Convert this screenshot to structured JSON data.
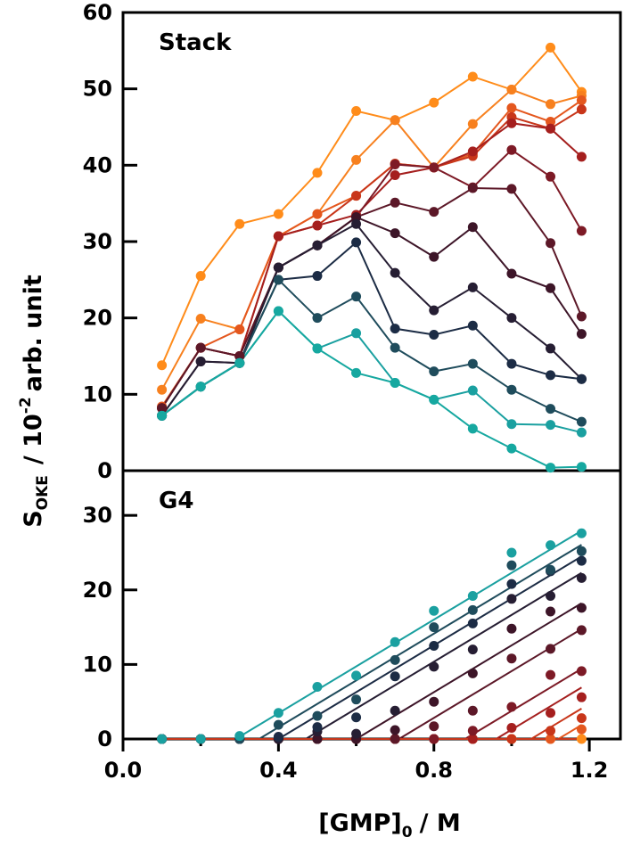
{
  "chart_data": [
    {
      "type": "line",
      "panel_label": "Stack",
      "ylim": [
        0,
        60
      ],
      "yticks": [
        "0",
        "10",
        "20",
        "30",
        "40",
        "50",
        "60"
      ],
      "x": [
        0.1,
        0.2,
        0.3,
        0.4,
        0.5,
        0.6,
        0.7,
        0.8,
        0.9,
        1.0,
        1.1,
        1.18
      ],
      "series": [
        {
          "name": "s1",
          "color": "#ff8c1a",
          "values": [
            13.8,
            25.5,
            32.3,
            33.6,
            39.0,
            47.1,
            45.9,
            48.2,
            51.6,
            49.9,
            55.4,
            49.6
          ]
        },
        {
          "name": "s2",
          "color": "#f7801e",
          "values": [
            10.6,
            19.9,
            18.5,
            30.7,
            33.6,
            40.7,
            45.9,
            39.7,
            45.4,
            49.9,
            48.0,
            49.1
          ]
        },
        {
          "name": "s3",
          "color": "#e4571e",
          "values": [
            8.4,
            16.1,
            18.5,
            30.7,
            33.6,
            36.0,
            40.2,
            39.7,
            41.5,
            47.5,
            45.7,
            48.5
          ]
        },
        {
          "name": "s4",
          "color": "#c8361a",
          "values": [
            8.2,
            16.1,
            15.0,
            30.7,
            32.1,
            36.0,
            40.2,
            39.7,
            41.2,
            46.3,
            44.8,
            47.3
          ]
        },
        {
          "name": "s5",
          "color": "#a51f1e",
          "values": [
            8.2,
            16.1,
            15.0,
            30.7,
            32.1,
            33.5,
            38.7,
            39.7,
            41.8,
            45.5,
            44.8,
            41.1
          ]
        },
        {
          "name": "s6",
          "color": "#7d1a26",
          "values": [
            8.2,
            16.1,
            15.0,
            26.6,
            29.5,
            33.2,
            40.1,
            39.7,
            37.1,
            42.0,
            38.5,
            31.4
          ]
        },
        {
          "name": "s7",
          "color": "#5c1828",
          "values": [
            8.2,
            16.1,
            15.0,
            26.6,
            29.5,
            33.2,
            35.1,
            33.9,
            37.0,
            36.9,
            29.8,
            20.2
          ]
        },
        {
          "name": "s8",
          "color": "#3d1528",
          "values": [
            7.2,
            14.3,
            14.1,
            26.6,
            29.5,
            33.2,
            31.1,
            28.0,
            31.9,
            25.8,
            23.9,
            17.9
          ]
        },
        {
          "name": "s9",
          "color": "#261e33",
          "values": [
            7.2,
            14.3,
            14.1,
            26.6,
            29.5,
            32.3,
            25.9,
            21.0,
            24.0,
            20.0,
            16.0,
            12.0
          ]
        },
        {
          "name": "s10",
          "color": "#1c2c45",
          "values": [
            7.2,
            11.0,
            14.1,
            25.0,
            25.5,
            29.9,
            18.6,
            17.8,
            19.0,
            14.0,
            12.5,
            12.0
          ]
        },
        {
          "name": "s11",
          "color": "#1f4c5c",
          "values": [
            7.2,
            11.0,
            14.1,
            25.0,
            20.0,
            22.8,
            16.1,
            13.0,
            14.0,
            10.6,
            8.1,
            6.4
          ]
        },
        {
          "name": "s12",
          "color": "#1aa0a0",
          "values": [
            7.2,
            11.0,
            14.1,
            20.9,
            16.0,
            18.0,
            11.5,
            9.3,
            10.5,
            6.1,
            6.0,
            5.0
          ]
        },
        {
          "name": "s13",
          "color": "#16a8a0",
          "values": [
            7.2,
            11.0,
            14.1,
            20.9,
            16.0,
            12.8,
            11.5,
            9.3,
            5.5,
            2.9,
            0.4,
            0.5
          ]
        }
      ]
    },
    {
      "type": "scatter",
      "panel_label": "G4",
      "ylim": [
        0,
        36
      ],
      "yticks": [
        "0",
        "10",
        "20",
        "30"
      ],
      "xlabel_x": "[GMP]",
      "xlabel_sub": "0",
      "xlabel_unit": "/ M",
      "xlim": [
        0,
        1.28
      ],
      "xticks": [
        "0.0",
        "0.4",
        "0.8",
        "1.2"
      ],
      "x": [
        0.1,
        0.2,
        0.3,
        0.4,
        0.5,
        0.6,
        0.7,
        0.8,
        0.9,
        1.0,
        1.1,
        1.18
      ],
      "series": [
        {
          "name": "g1",
          "color": "#1aa0a0",
          "x0": 0.29,
          "slope": 31.4,
          "values": [
            0,
            0,
            0.4,
            3.5,
            7.0,
            8.5,
            13.0,
            17.2,
            19.2,
            25.0,
            26.0,
            27.6
          ]
        },
        {
          "name": "g2",
          "color": "#1f4c5c",
          "x0": 0.35,
          "slope": 31.4,
          "values": [
            0,
            0,
            0,
            1.9,
            3.1,
            5.3,
            10.6,
            15.0,
            17.3,
            23.3,
            22.7,
            25.2
          ]
        },
        {
          "name": "g3",
          "color": "#1c2c45",
          "x0": 0.4,
          "slope": 31.4,
          "values": [
            0,
            0,
            0,
            0.3,
            1.6,
            2.9,
            8.4,
            12.5,
            15.5,
            20.8,
            22.5,
            23.9
          ]
        },
        {
          "name": "g4",
          "color": "#261e33",
          "x0": 0.47,
          "slope": 31.4,
          "values": [
            0,
            0,
            0,
            0,
            1.0,
            0.7,
            3.8,
            9.7,
            12.0,
            18.8,
            19.2,
            21.6
          ]
        },
        {
          "name": "g5",
          "color": "#3d1528",
          "x0": 0.6,
          "slope": 31.4,
          "values": [
            0,
            0,
            0,
            0,
            0,
            0,
            1.2,
            5.0,
            8.8,
            14.8,
            17.1,
            17.6
          ]
        },
        {
          "name": "g6",
          "color": "#5c1828",
          "x0": 0.71,
          "slope": 31.4,
          "values": [
            0,
            0,
            0,
            0,
            0,
            0,
            0,
            1.7,
            3.8,
            10.8,
            12.1,
            14.6
          ]
        },
        {
          "name": "g7",
          "color": "#7d1a26",
          "x0": 0.88,
          "slope": 31.4,
          "values": [
            0,
            0,
            0,
            0,
            0,
            0,
            0,
            0,
            1.1,
            4.3,
            8.6,
            9.1
          ]
        },
        {
          "name": "g8",
          "color": "#a51f1e",
          "x0": 0.96,
          "slope": 31.4,
          "values": [
            0,
            0,
            0,
            0,
            0,
            0,
            0,
            0,
            0,
            1.5,
            3.5,
            5.6
          ]
        },
        {
          "name": "g9",
          "color": "#c8361a",
          "x0": 1.05,
          "slope": 31.4,
          "values": [
            0,
            0,
            0,
            0,
            0,
            0,
            0,
            0,
            0,
            0,
            1.1,
            2.8
          ]
        },
        {
          "name": "g10",
          "color": "#e4571e",
          "x0": 1.12,
          "slope": 31.4,
          "values": [
            0,
            0,
            0,
            0,
            0,
            0,
            0,
            0,
            0,
            0,
            0,
            1.3
          ]
        },
        {
          "name": "g11",
          "color": "#ff8c1a",
          "x0": 1.18,
          "slope": 31.4,
          "values": [
            0,
            0,
            0,
            0,
            0,
            0,
            0,
            0,
            0,
            0,
            0,
            0
          ]
        }
      ]
    }
  ],
  "ylabel": {
    "s_main": "S",
    "s_sub": "OKE",
    "unit_pre": "/ 10",
    "unit_sup": "-2",
    "unit_post": "arb. unit"
  }
}
